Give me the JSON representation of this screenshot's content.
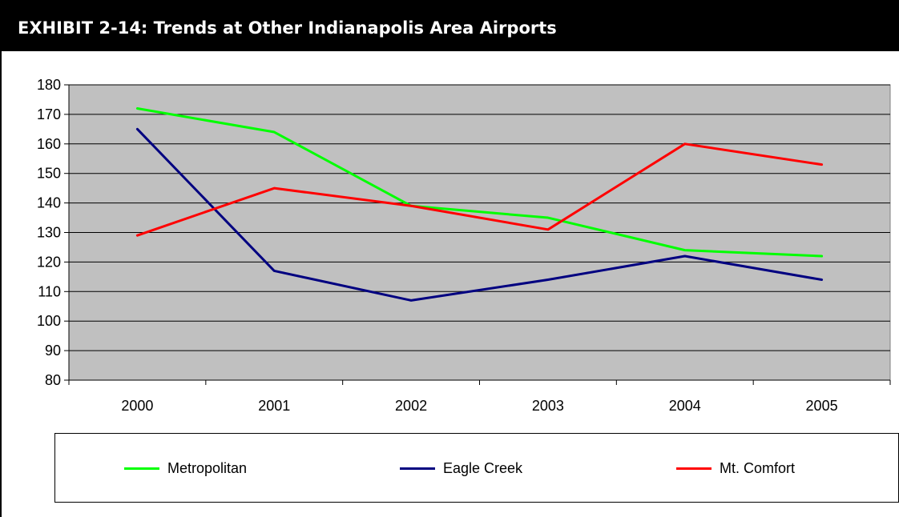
{
  "page": {
    "title": "EXHIBIT 2-14: Trends at Other Indianapolis Area Airports"
  },
  "chart_data": {
    "type": "line",
    "title": "EXHIBIT 2-14: Trends at Other Indianapolis Area Airports",
    "xlabel": "",
    "ylabel": "",
    "categories": [
      "2000",
      "2001",
      "2002",
      "2003",
      "2004",
      "2005"
    ],
    "y_ticks": [
      "80",
      "90",
      "100",
      "110",
      "120",
      "130",
      "140",
      "150",
      "160",
      "170",
      "180"
    ],
    "ylim": [
      80,
      180
    ],
    "grid": true,
    "plot_background": "#c0c0c0",
    "legend_position": "bottom",
    "series": [
      {
        "name": "Metropolitan",
        "color": "#00ff00",
        "values": [
          172,
          164,
          139,
          135,
          124,
          122
        ]
      },
      {
        "name": "Eagle Creek",
        "color": "#000080",
        "values": [
          165,
          117,
          107,
          114,
          122,
          114
        ]
      },
      {
        "name": "Mt. Comfort",
        "color": "#ff0000",
        "values": [
          129,
          145,
          139,
          131,
          160,
          153
        ]
      }
    ]
  }
}
